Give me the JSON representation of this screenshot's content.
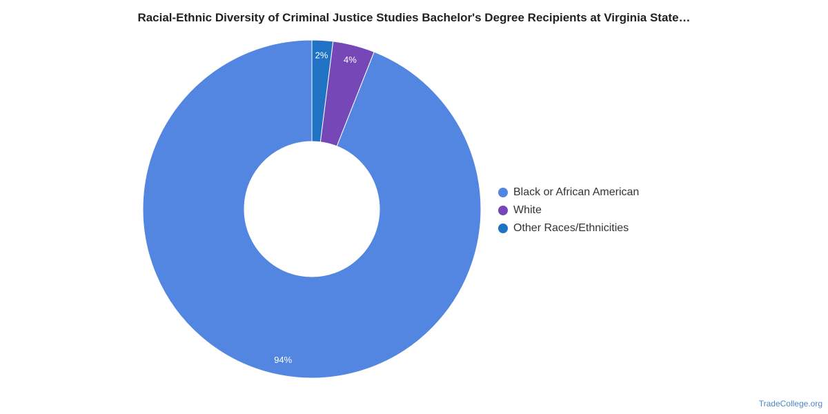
{
  "title": "Racial-Ethnic Diversity of Criminal Justice Studies Bachelor's Degree Recipients at Virginia State…",
  "credit": "TradeCollege.org",
  "chart_data": {
    "type": "pie",
    "variant": "donut",
    "title": "Racial-Ethnic Diversity of Criminal Justice Studies Bachelor's Degree Recipients at Virginia State…",
    "legend_position": "right",
    "slices": [
      {
        "label": "Black or African American",
        "value": 94,
        "display": "94%",
        "color": "#5286e0"
      },
      {
        "label": "White",
        "value": 4,
        "display": "4%",
        "color": "#7647b7"
      },
      {
        "label": "Other Races/Ethnicities",
        "value": 2,
        "display": "2%",
        "color": "#1f72c4"
      }
    ]
  }
}
